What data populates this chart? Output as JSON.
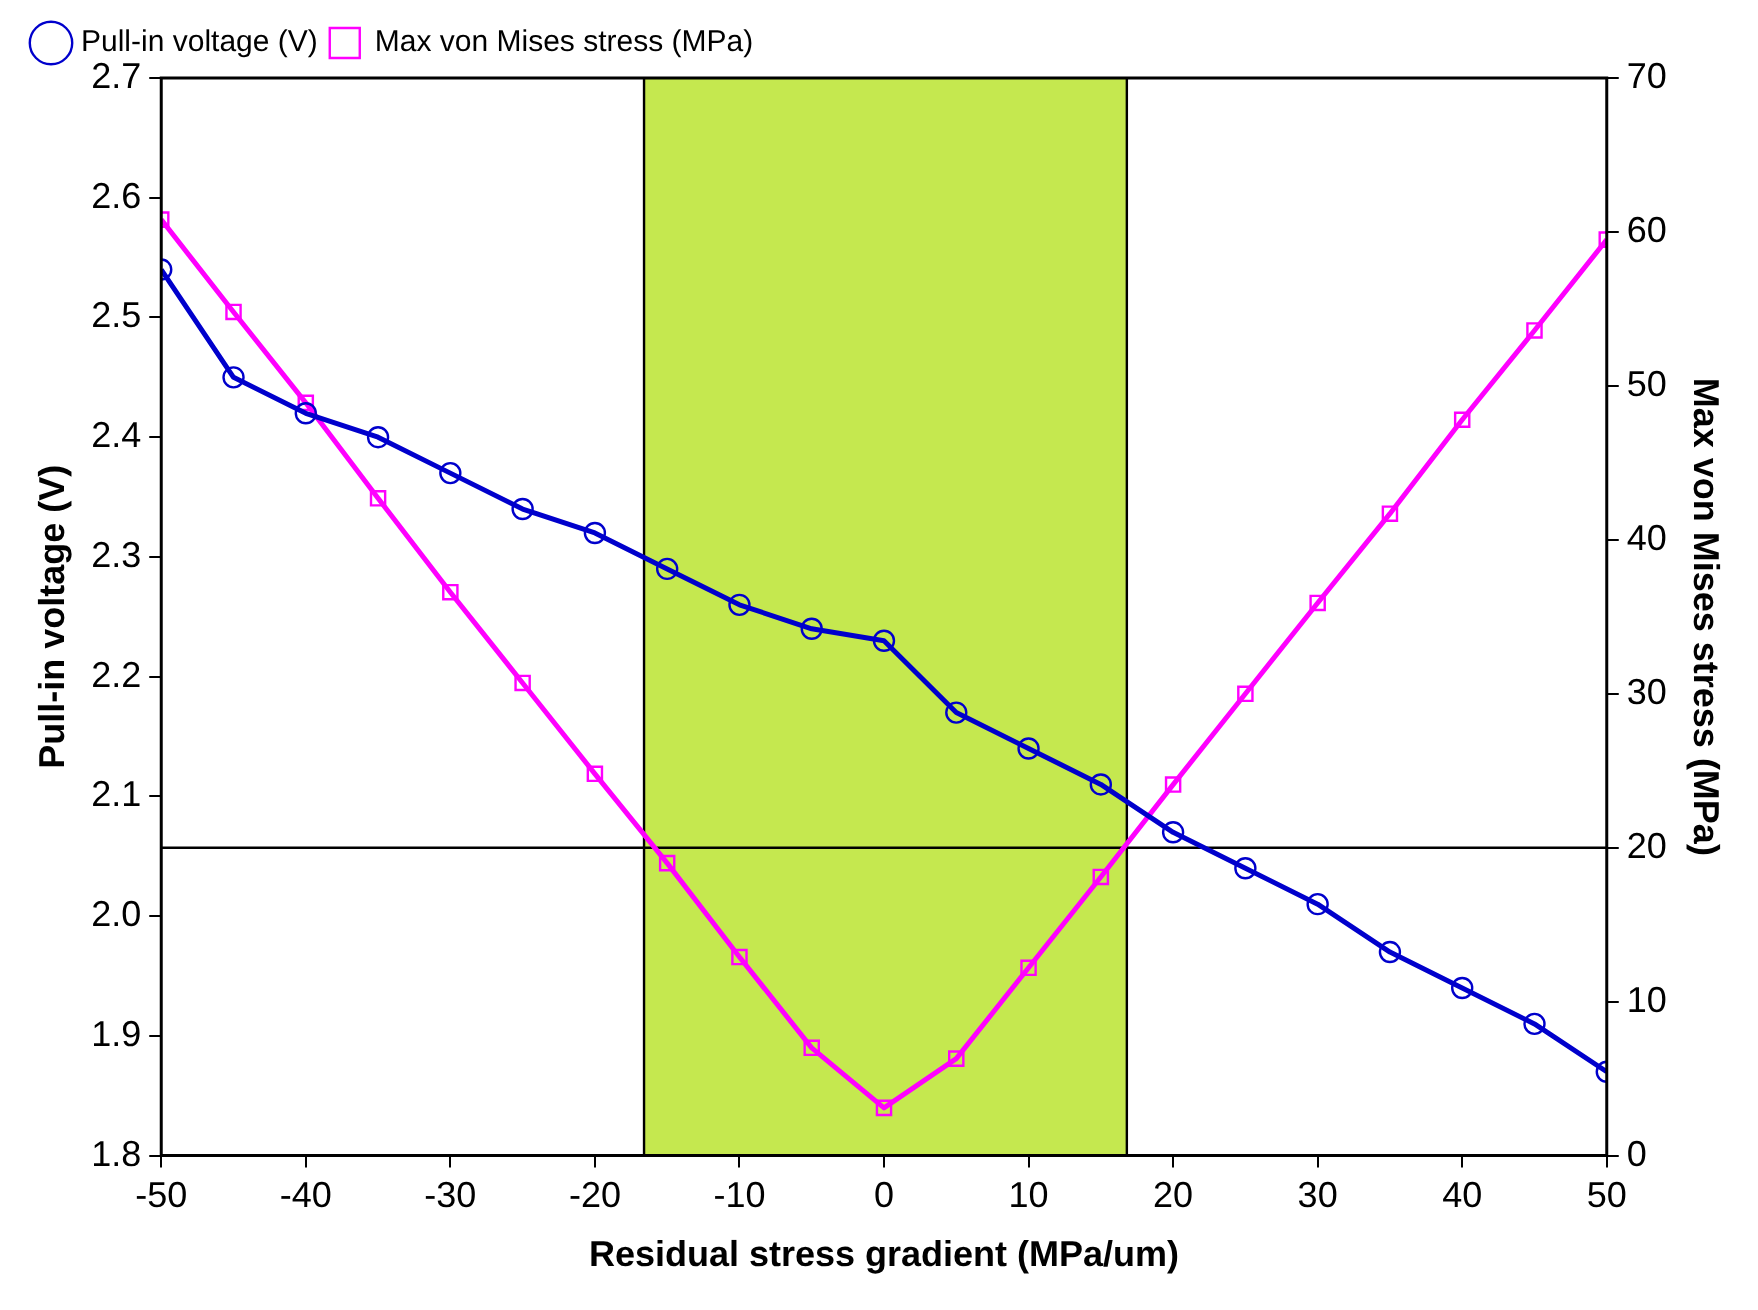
{
  "chart_data": {
    "type": "line",
    "xlabel": "Residual stress gradient (MPa/um)",
    "ylabel": "Pull-in voltage (V)",
    "y2label": "Max von Mises stress (MPa)",
    "x": [
      -50,
      -45,
      -40,
      -35,
      -30,
      -25,
      -20,
      -15,
      -10,
      -5,
      0,
      5,
      10,
      15,
      20,
      25,
      30,
      35,
      40,
      45,
      50
    ],
    "series": [
      {
        "name": "Pull-in voltage (V)",
        "color": "#0000cc",
        "marker": "circle",
        "values": [
          2.54,
          2.45,
          2.42,
          2.4,
          2.37,
          2.34,
          2.32,
          2.29,
          2.26,
          2.24,
          2.23,
          2.17,
          2.14,
          2.11,
          2.07,
          2.04,
          2.01,
          1.97,
          1.94,
          1.91,
          1.87
        ]
      },
      {
        "name": "Max von Mises stress (MPa)",
        "color": "#ff00ff",
        "marker": "square",
        "axis": "y2",
        "values": [
          60.8,
          54.8,
          48.9,
          42.7,
          36.6,
          30.7,
          24.8,
          19.0,
          12.9,
          7.0,
          3.1,
          6.3,
          12.2,
          18.1,
          24.1,
          30.0,
          35.9,
          41.7,
          47.8,
          53.6,
          59.5
        ]
      }
    ],
    "xlim": [
      -50,
      50
    ],
    "xticks": [
      -50,
      -40,
      -30,
      -20,
      -10,
      0,
      10,
      20,
      30,
      40,
      50
    ],
    "ylim": [
      1.8,
      2.7
    ],
    "yticks": [
      {
        "value": 1.8,
        "label": "1.8"
      },
      {
        "value": 1.9,
        "label": "1.9"
      },
      {
        "value": 2.0,
        "label": "2.0"
      },
      {
        "value": 2.1,
        "label": "2.1"
      },
      {
        "value": 2.2,
        "label": "2.2"
      },
      {
        "value": 2.3,
        "label": "2.3"
      },
      {
        "value": 2.4,
        "label": "2.4"
      },
      {
        "value": 2.5,
        "label": "2.5"
      },
      {
        "value": 2.6,
        "label": "2.6"
      },
      {
        "value": 2.7,
        "label": "2.7"
      }
    ],
    "y2lim": [
      0,
      70
    ],
    "y2ticks": [
      0,
      10,
      20,
      30,
      40,
      50,
      60,
      70
    ],
    "bands": [
      {
        "axis": "x",
        "from": -16.6,
        "to": 16.8,
        "color": "#c5e84f"
      }
    ],
    "ref_lines": [
      {
        "axis": "y2",
        "value": 20,
        "color": "#000000"
      },
      {
        "axis": "x",
        "value": -16.6,
        "color": "#000000"
      },
      {
        "axis": "x",
        "value": 16.8,
        "color": "#000000"
      }
    ],
    "grid": false,
    "legend": "top left",
    "line_style": "solid"
  }
}
